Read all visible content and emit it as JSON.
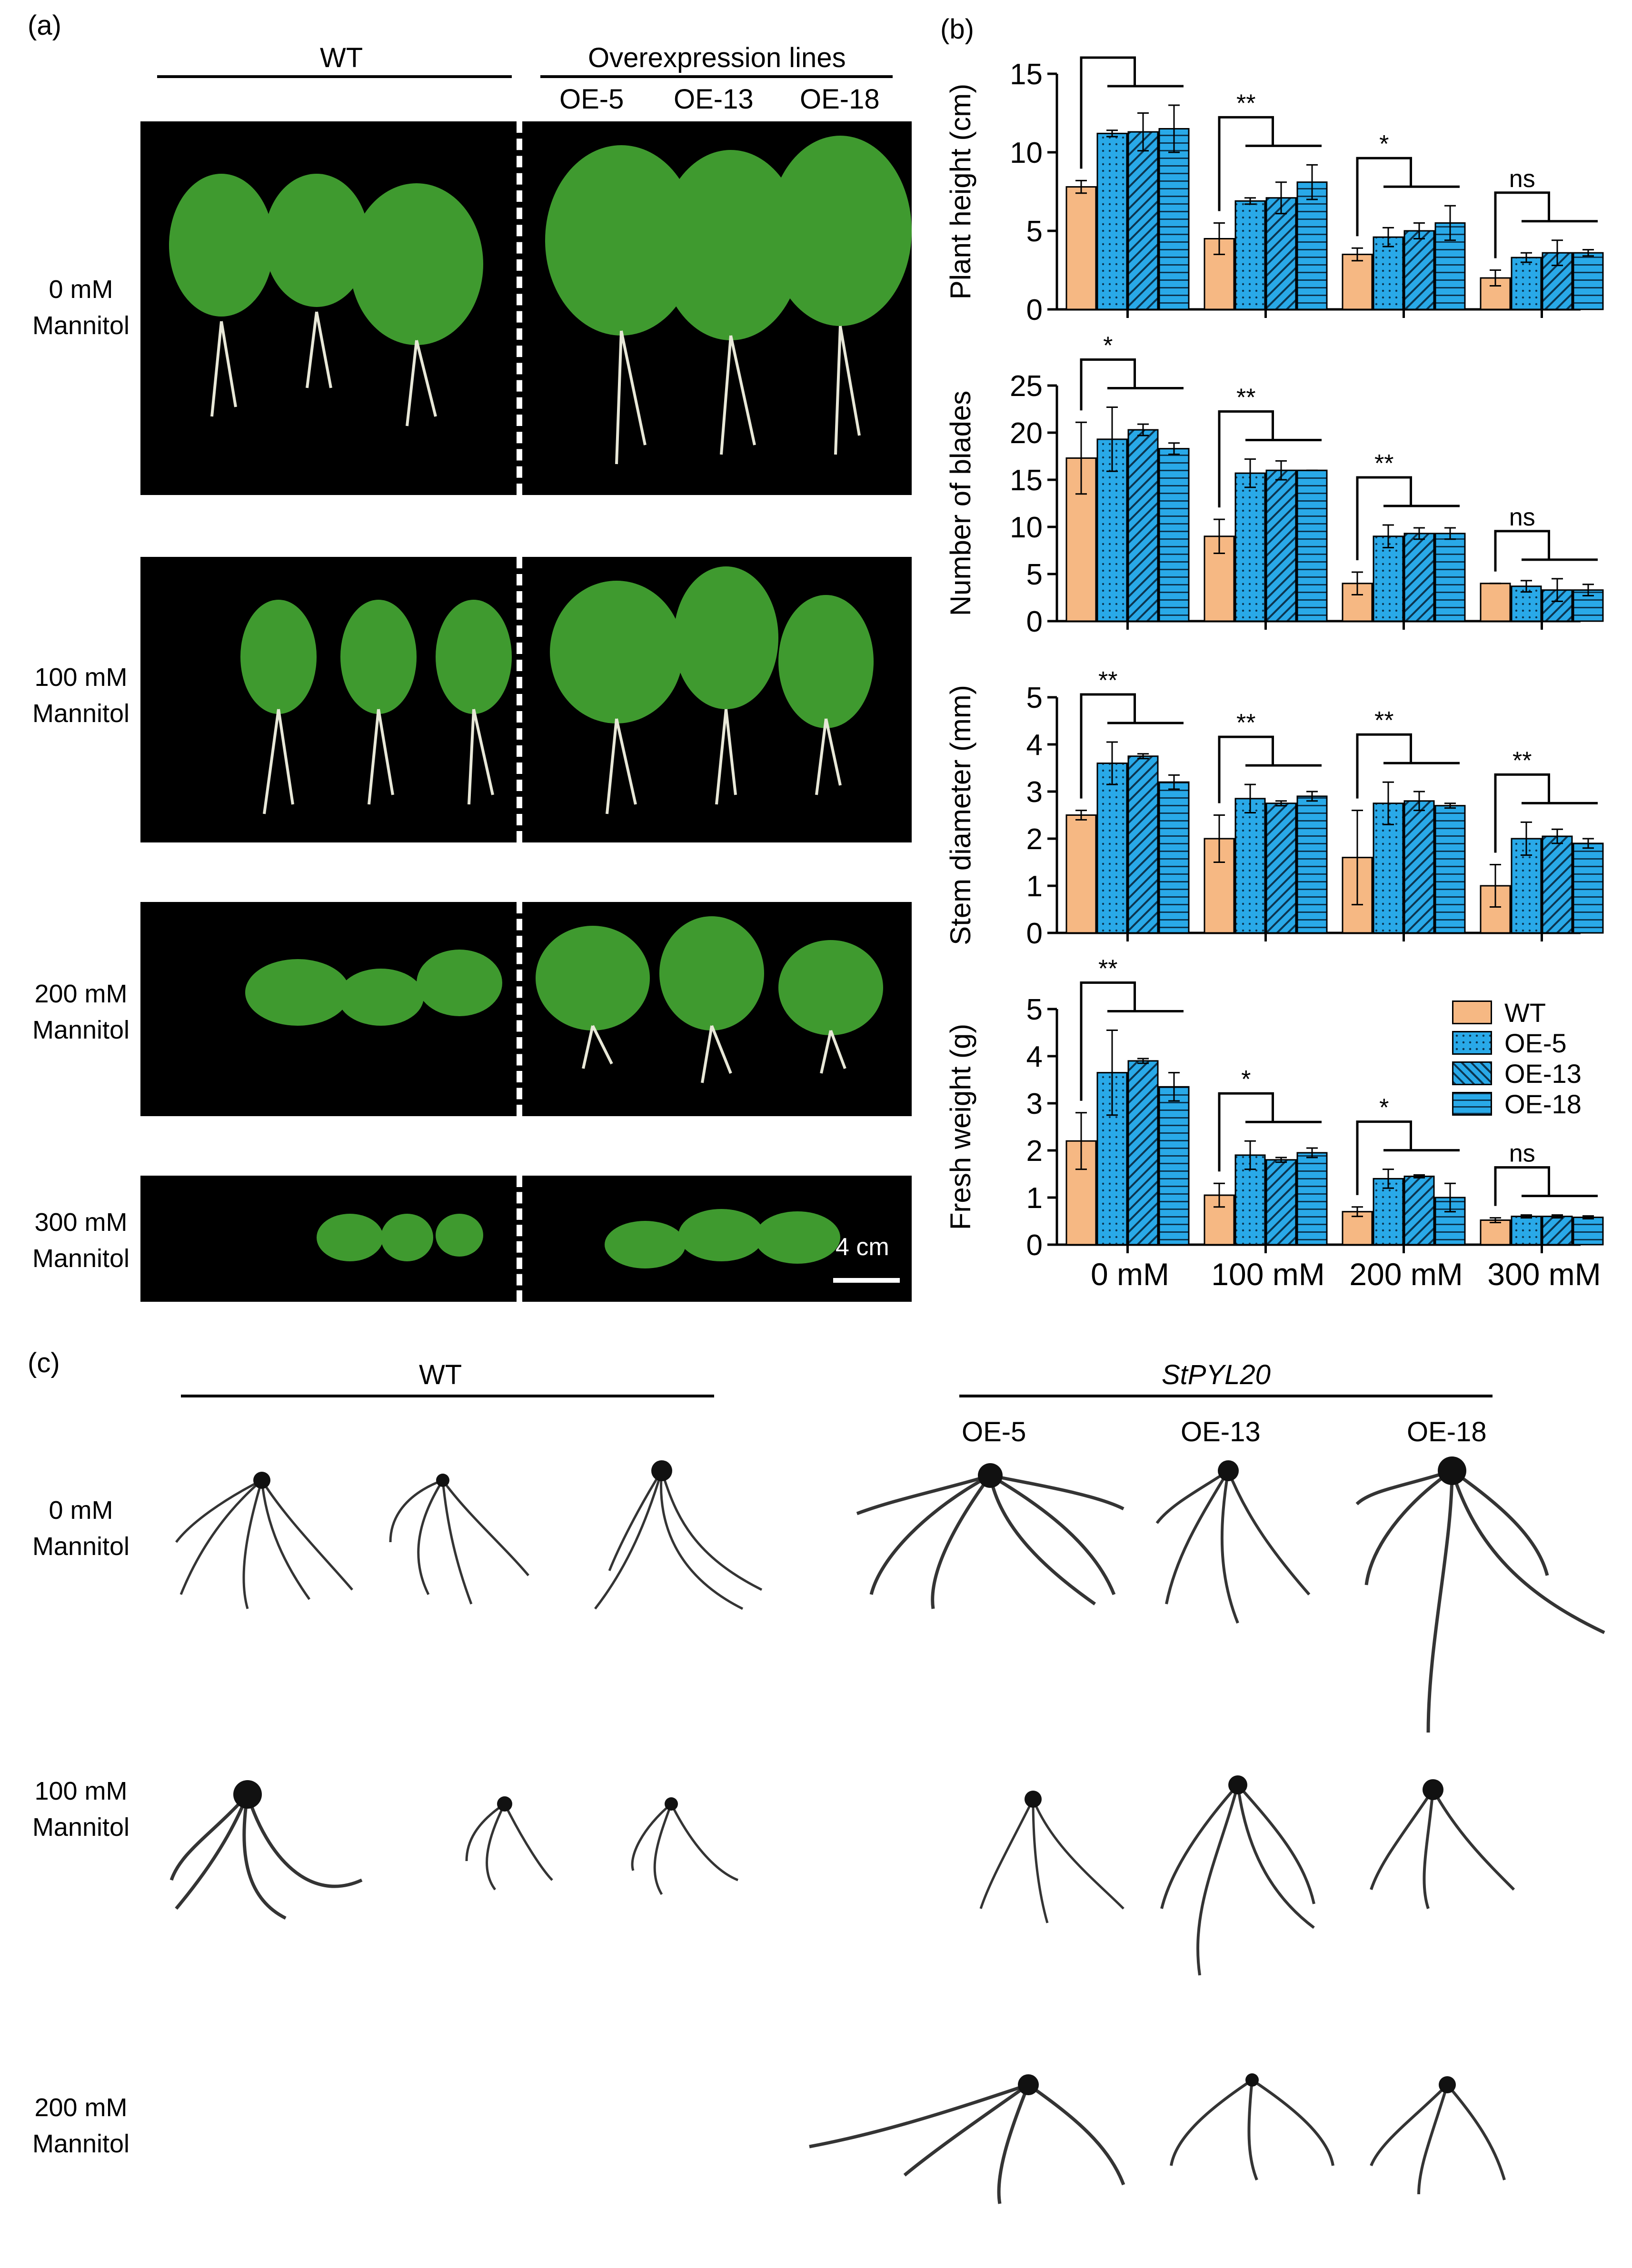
{
  "panel_a": {
    "label": "(a)",
    "wt_header": "WT",
    "oe_header": "Overexpression lines",
    "lines": [
      "OE-5",
      "OE-13",
      "OE-18"
    ],
    "conditions": [
      {
        "line1": "0 mM",
        "line2": "Mannitol"
      },
      {
        "line1": "100 mM",
        "line2": "Mannitol"
      },
      {
        "line1": "200 mM",
        "line2": "Mannitol"
      },
      {
        "line1": "300 mM",
        "line2": "Mannitol"
      }
    ],
    "scale_bar": "4 cm"
  },
  "panel_b": {
    "label": "(b)"
  },
  "panel_c": {
    "label": "(c)",
    "wt_header": "WT",
    "oe_header": "StPYL20",
    "lines": [
      "OE-5",
      "OE-13",
      "OE-18"
    ],
    "conditions": [
      {
        "line1": "0 mM",
        "line2": "Mannitol"
      },
      {
        "line1": "100 mM",
        "line2": "Mannitol"
      },
      {
        "line1": "200 mM",
        "line2": "Mannitol"
      }
    ]
  },
  "chart_data": [
    {
      "type": "bar",
      "ylabel": "Plant height (cm)",
      "ylim": [
        0,
        15
      ],
      "yticks": [
        0,
        5,
        10,
        15
      ],
      "categories": [
        "0 mM",
        "100 mM",
        "200 mM",
        "300 mM"
      ],
      "series": [
        {
          "name": "WT",
          "values": [
            7.8,
            4.5,
            3.5,
            2.0
          ],
          "errors": [
            0.4,
            1.0,
            0.4,
            0.5
          ]
        },
        {
          "name": "OE-5",
          "values": [
            11.2,
            6.9,
            4.6,
            3.3
          ],
          "errors": [
            0.2,
            0.2,
            0.6,
            0.3
          ]
        },
        {
          "name": "OE-13",
          "values": [
            11.3,
            7.1,
            5.0,
            3.6
          ],
          "errors": [
            1.2,
            1.0,
            0.5,
            0.8
          ]
        },
        {
          "name": "OE-18",
          "values": [
            11.5,
            8.1,
            5.5,
            3.6
          ],
          "errors": [
            1.5,
            1.1,
            1.1,
            0.2
          ]
        }
      ],
      "significance": [
        "**",
        "**",
        "*",
        "ns"
      ]
    },
    {
      "type": "bar",
      "ylabel": "Number of blades",
      "ylim": [
        0,
        25
      ],
      "yticks": [
        0,
        5,
        10,
        15,
        20,
        25
      ],
      "categories": [
        "0 mM",
        "100 mM",
        "200 mM",
        "300 mM"
      ],
      "series": [
        {
          "name": "WT",
          "values": [
            17.3,
            9.0,
            4.0,
            4.0
          ],
          "errors": [
            3.8,
            1.8,
            1.2,
            0.0
          ]
        },
        {
          "name": "OE-5",
          "values": [
            19.3,
            15.7,
            9.0,
            3.7
          ],
          "errors": [
            3.4,
            1.5,
            1.2,
            0.6
          ]
        },
        {
          "name": "OE-13",
          "values": [
            20.3,
            16.0,
            9.3,
            3.3
          ],
          "errors": [
            0.6,
            1.0,
            0.6,
            1.2
          ]
        },
        {
          "name": "OE-18",
          "values": [
            18.3,
            16.0,
            9.3,
            3.3
          ],
          "errors": [
            0.6,
            0.0,
            0.6,
            0.6
          ]
        }
      ],
      "significance": [
        "*",
        "**",
        "**",
        "ns"
      ]
    },
    {
      "type": "bar",
      "ylabel": "Stem diameter (mm)",
      "ylim": [
        0,
        5
      ],
      "yticks": [
        0,
        1,
        2,
        3,
        4,
        5
      ],
      "categories": [
        "0 mM",
        "100 mM",
        "200 mM",
        "300 mM"
      ],
      "series": [
        {
          "name": "WT",
          "values": [
            2.5,
            2.0,
            1.6,
            1.0
          ],
          "errors": [
            0.1,
            0.5,
            1.0,
            0.45
          ]
        },
        {
          "name": "OE-5",
          "values": [
            3.6,
            2.85,
            2.75,
            2.0
          ],
          "errors": [
            0.45,
            0.3,
            0.45,
            0.35
          ]
        },
        {
          "name": "OE-13",
          "values": [
            3.75,
            2.75,
            2.8,
            2.05
          ],
          "errors": [
            0.05,
            0.05,
            0.2,
            0.15
          ]
        },
        {
          "name": "OE-18",
          "values": [
            3.2,
            2.9,
            2.7,
            1.9
          ],
          "errors": [
            0.15,
            0.1,
            0.05,
            0.1
          ]
        }
      ],
      "significance": [
        "**",
        "**",
        "**",
        "**"
      ]
    },
    {
      "type": "bar",
      "ylabel": "Fresh weight (g)",
      "ylim": [
        0,
        5
      ],
      "yticks": [
        0,
        1,
        2,
        3,
        4,
        5
      ],
      "categories": [
        "0 mM",
        "100 mM",
        "200 mM",
        "300 mM"
      ],
      "series": [
        {
          "name": "WT",
          "values": [
            2.2,
            1.05,
            0.7,
            0.52
          ],
          "errors": [
            0.6,
            0.25,
            0.1,
            0.05
          ]
        },
        {
          "name": "OE-5",
          "values": [
            3.65,
            1.9,
            1.4,
            0.6
          ],
          "errors": [
            0.9,
            0.3,
            0.2,
            0.03
          ]
        },
        {
          "name": "OE-13",
          "values": [
            3.9,
            1.8,
            1.45,
            0.6
          ],
          "errors": [
            0.05,
            0.05,
            0.03,
            0.03
          ]
        },
        {
          "name": "OE-18",
          "values": [
            3.35,
            1.95,
            1.0,
            0.58
          ],
          "errors": [
            0.3,
            0.1,
            0.3,
            0.03
          ]
        }
      ],
      "significance": [
        "**",
        "*",
        "*",
        "ns"
      ]
    }
  ],
  "legend": {
    "placement": "right of bottom chart",
    "entries": [
      "WT",
      "OE-5",
      "OE-13",
      "OE-18"
    ]
  },
  "colors": {
    "wt": "#f6b883",
    "oe": "#29a9e8",
    "photo_bg": "#000000"
  }
}
